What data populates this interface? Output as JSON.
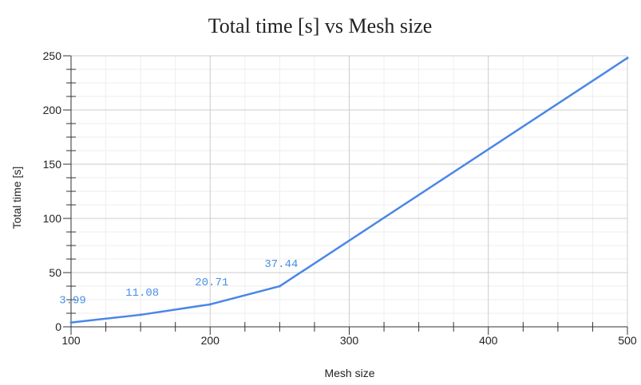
{
  "chart_data": {
    "type": "line",
    "title": "Total time [s] vs Mesh size",
    "xlabel": "Mesh size",
    "ylabel": "Total time [s]",
    "xlim": [
      100,
      500
    ],
    "ylim": [
      0,
      250
    ],
    "x_ticks": [
      100,
      200,
      300,
      400,
      500
    ],
    "y_ticks": [
      0,
      50,
      100,
      150,
      200,
      250
    ],
    "grid": true,
    "legend": "none",
    "series": [
      {
        "x": [
          100,
          150,
          200,
          250,
          500
        ],
        "values": [
          3.99,
          11.08,
          20.71,
          37.44,
          248
        ],
        "color": "#4a86e8"
      }
    ],
    "data_labels": [
      {
        "x": 100,
        "y": 3.99,
        "text": "3.99"
      },
      {
        "x": 150,
        "y": 11.08,
        "text": "11.08"
      },
      {
        "x": 200,
        "y": 20.71,
        "text": "20.71"
      },
      {
        "x": 250,
        "y": 37.44,
        "text": "37.44"
      }
    ],
    "colors": {
      "line": "#4a86e8",
      "data_label": "#4a90e2",
      "grid_major": "#cccccc",
      "grid_minor": "#eeeeee",
      "axis": "#333333"
    }
  }
}
